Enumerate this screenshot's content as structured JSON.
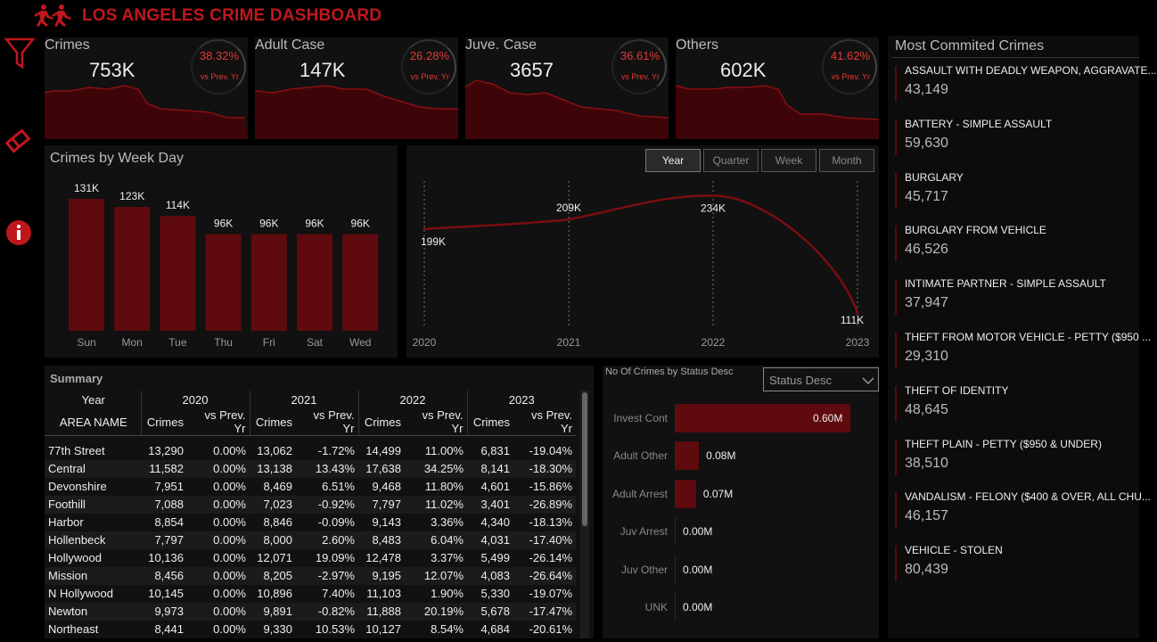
{
  "app": {
    "title": "LOS ANGELES CRIME DASHBOARD"
  },
  "kpis": [
    {
      "title": "Crimes",
      "value": "753K",
      "pct": "38.32%",
      "sub": "vs Prev. Yr"
    },
    {
      "title": "Adult Case",
      "value": "147K",
      "pct": "26.28%",
      "sub": "vs Prev. Yr"
    },
    {
      "title": "Juve. Case",
      "value": "3657",
      "pct": "36.61%",
      "sub": "vs Prev. Yr"
    },
    {
      "title": "Others",
      "value": "602K",
      "pct": "41.62%",
      "sub": "vs Prev. Yr"
    }
  ],
  "weekday": {
    "title": "Crimes by Week Day"
  },
  "trend": {
    "buttons": [
      "Year",
      "Quarter",
      "Week",
      "Month"
    ],
    "active": "Year"
  },
  "summary": {
    "title": "Summary",
    "year_label": "Year",
    "area_label": "AREA NAME",
    "years": [
      "2020",
      "2021",
      "2022",
      "2023"
    ],
    "col_crimes": "Crimes",
    "col_vs": "vs Prev. Yr",
    "rows": [
      [
        "77th Street",
        "13,290",
        "0.00%",
        "13,062",
        "-1.72%",
        "14,499",
        "11.00%",
        "6,831",
        "-19.04%"
      ],
      [
        "Central",
        "11,582",
        "0.00%",
        "13,138",
        "13.43%",
        "17,638",
        "34.25%",
        "8,141",
        "-18.30%"
      ],
      [
        "Devonshire",
        "7,951",
        "0.00%",
        "8,469",
        "6.51%",
        "9,468",
        "11.80%",
        "4,601",
        "-15.86%"
      ],
      [
        "Foothill",
        "7,088",
        "0.00%",
        "7,023",
        "-0.92%",
        "7,797",
        "11.02%",
        "3,401",
        "-26.89%"
      ],
      [
        "Harbor",
        "8,854",
        "0.00%",
        "8,846",
        "-0.09%",
        "9,143",
        "3.36%",
        "4,340",
        "-18.13%"
      ],
      [
        "Hollenbeck",
        "7,797",
        "0.00%",
        "8,000",
        "2.60%",
        "8,483",
        "6.04%",
        "4,031",
        "-17.40%"
      ],
      [
        "Hollywood",
        "10,136",
        "0.00%",
        "12,071",
        "19.09%",
        "12,478",
        "3.37%",
        "5,499",
        "-26.14%"
      ],
      [
        "Mission",
        "8,456",
        "0.00%",
        "8,205",
        "-2.97%",
        "9,195",
        "12.07%",
        "4,083",
        "-26.64%"
      ],
      [
        "N Hollywood",
        "10,145",
        "0.00%",
        "10,896",
        "7.40%",
        "11,103",
        "1.90%",
        "5,330",
        "-19.07%"
      ],
      [
        "Newton",
        "9,973",
        "0.00%",
        "9,891",
        "-0.82%",
        "11,888",
        "20.19%",
        "5,678",
        "-17.47%"
      ],
      [
        "Northeast",
        "8,441",
        "0.00%",
        "9,330",
        "10.53%",
        "10,127",
        "8.54%",
        "4,684",
        "-20.61%"
      ]
    ]
  },
  "status": {
    "title": "No Of Crimes by Status Desc",
    "dropdown": "Status Desc",
    "items": [
      {
        "label": "Invest Cont",
        "value": 0.6,
        "text": "0.60M"
      },
      {
        "label": "Adult Other",
        "value": 0.08,
        "text": "0.08M"
      },
      {
        "label": "Adult Arrest",
        "value": 0.07,
        "text": "0.07M"
      },
      {
        "label": "Juv Arrest",
        "value": 0.0,
        "text": "0.00M"
      },
      {
        "label": "Juv Other",
        "value": 0.0,
        "text": "0.00M"
      },
      {
        "label": "UNK",
        "value": 0.0,
        "text": "0.00M"
      }
    ]
  },
  "top_crimes": {
    "title": "Most Commited Crimes",
    "items": [
      {
        "name": "ASSAULT WITH DEADLY WEAPON, AGGRAVATE...",
        "count": "43,149"
      },
      {
        "name": "BATTERY - SIMPLE ASSAULT",
        "count": "59,630"
      },
      {
        "name": "BURGLARY",
        "count": "45,717"
      },
      {
        "name": "BURGLARY FROM VEHICLE",
        "count": "46,526"
      },
      {
        "name": "INTIMATE PARTNER - SIMPLE ASSAULT",
        "count": "37,947"
      },
      {
        "name": "THEFT FROM MOTOR VEHICLE - PETTY ($950 ...",
        "count": "29,310"
      },
      {
        "name": "THEFT OF IDENTITY",
        "count": "48,645"
      },
      {
        "name": "THEFT PLAIN - PETTY ($950 & UNDER)",
        "count": "38,510"
      },
      {
        "name": "VANDALISM - FELONY ($400 & OVER, ALL CHU...",
        "count": "46,157"
      },
      {
        "name": "VEHICLE - STOLEN",
        "count": "80,439"
      }
    ]
  },
  "colors": {
    "accent": "#c0171d",
    "bar": "#5e0a0e",
    "bg": "#111111"
  },
  "chart_data": [
    {
      "type": "bar",
      "title": "Crimes by Week Day",
      "categories": [
        "Sun",
        "Mon",
        "Tue",
        "Thu",
        "Fri",
        "Sat",
        "Wed"
      ],
      "values": [
        131,
        123,
        114,
        96,
        96,
        96,
        96
      ],
      "labels": [
        "131K",
        "123K",
        "114K",
        "96K",
        "96K",
        "96K",
        "96K"
      ],
      "ylim": [
        0,
        131
      ]
    },
    {
      "type": "line",
      "x": [
        "2020",
        "2021",
        "2022",
        "2023"
      ],
      "values": [
        199,
        209,
        234,
        111
      ],
      "labels": [
        "199K",
        "209K",
        "234K",
        "111K"
      ]
    }
  ]
}
